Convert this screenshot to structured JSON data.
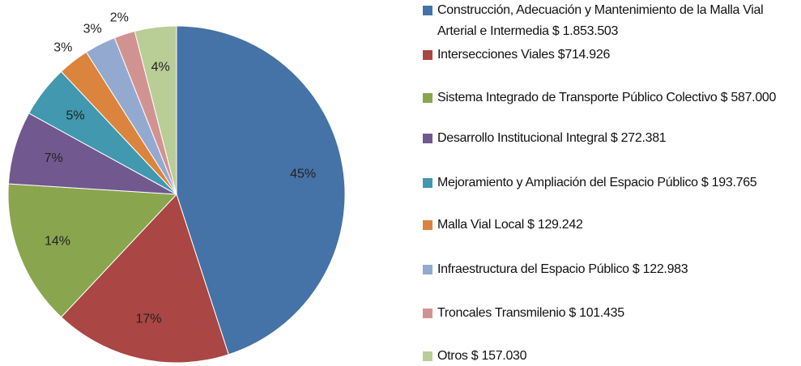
{
  "chart_data": {
    "type": "pie",
    "categories": [
      "Construcción, Adecuación y Mantenimiento de la Malla Vial Arterial e Intermedia $ 1.853.503",
      "Intersecciones Viales $714.926",
      "Sistema Integrado de Transporte Público Colectivo $ 587.000",
      "Desarrollo Institucional Integral $ 272.381",
      "Mejoramiento y Ampliación del Espacio Público $ 193.765",
      "Malla Vial Local $ 129.242",
      "Infraestructura del Espacio Público $ 122.983",
      "Troncales Transmilenio $ 101.435",
      "Otros $ 157.030"
    ],
    "values": [
      45,
      17,
      14,
      7,
      5,
      3,
      3,
      2,
      4
    ],
    "value_labels": [
      "45%",
      "17%",
      "14%",
      "7%",
      "5%",
      "3%",
      "3%",
      "2%",
      "4%"
    ],
    "colors": [
      "#4572a7",
      "#aa4643",
      "#89a54e",
      "#71588f",
      "#4198af",
      "#db843d",
      "#93a9cf",
      "#d19392",
      "#b9cd96"
    ],
    "legend": "right"
  }
}
